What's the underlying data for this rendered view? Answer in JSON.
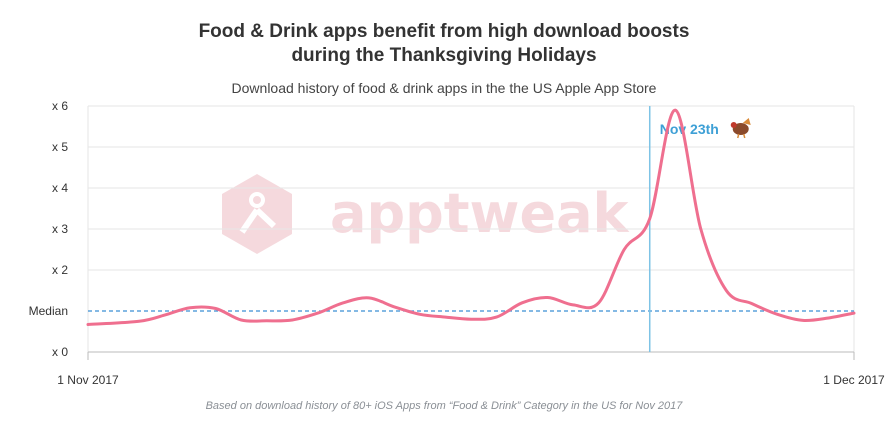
{
  "chart_data": {
    "type": "line",
    "title_line1": "Food & Drink apps benefit from high download boosts",
    "title_line2": "during the Thanksgiving Holidays",
    "subtitle": "Download history of food & drink apps in the the US Apple App Store",
    "footer": "Based on download history of 80+ iOS Apps from “Food & Drink” Category in the US for Nov 2017",
    "watermark": "apptweak",
    "x_start_label": "1 Nov 2017",
    "x_end_label": "1 Dec 2017",
    "x_range": [
      "2017-11-01",
      "2017-12-01"
    ],
    "ylim": [
      0,
      6
    ],
    "y_ticks": [
      {
        "value": 0,
        "label": "x 0"
      },
      {
        "value": 1,
        "label": "Median"
      },
      {
        "value": 2,
        "label": "x 2"
      },
      {
        "value": 3,
        "label": "x 3"
      },
      {
        "value": 4,
        "label": "x 4"
      },
      {
        "value": 5,
        "label": "x 5"
      },
      {
        "value": 6,
        "label": "x 6"
      }
    ],
    "median_value": 1,
    "grid": true,
    "line_color": "#ef6f8f",
    "median_color": "#3a8fd4",
    "annotation": {
      "date": "2017-11-23",
      "label": "Nov 23th",
      "color": "#3ea0d6",
      "icon": "turkey-icon"
    },
    "x": [
      "2017-11-01",
      "2017-11-03",
      "2017-11-04",
      "2017-11-05",
      "2017-11-06",
      "2017-11-07",
      "2017-11-08",
      "2017-11-09",
      "2017-11-10",
      "2017-11-11",
      "2017-11-12",
      "2017-11-13",
      "2017-11-14",
      "2017-11-15",
      "2017-11-16",
      "2017-11-17",
      "2017-11-18",
      "2017-11-19",
      "2017-11-20",
      "2017-11-21",
      "2017-11-22",
      "2017-11-23",
      "2017-11-24",
      "2017-11-25",
      "2017-11-26",
      "2017-11-27",
      "2017-11-28",
      "2017-11-29",
      "2017-11-30",
      "2017-12-01"
    ],
    "values": [
      0.67,
      0.75,
      0.9,
      1.08,
      1.06,
      0.78,
      0.76,
      0.78,
      0.95,
      1.2,
      1.32,
      1.1,
      0.92,
      0.85,
      0.8,
      0.85,
      1.2,
      1.33,
      1.15,
      1.2,
      2.5,
      3.25,
      5.9,
      3.0,
      1.5,
      1.18,
      0.92,
      0.77,
      0.83,
      0.95
    ]
  }
}
